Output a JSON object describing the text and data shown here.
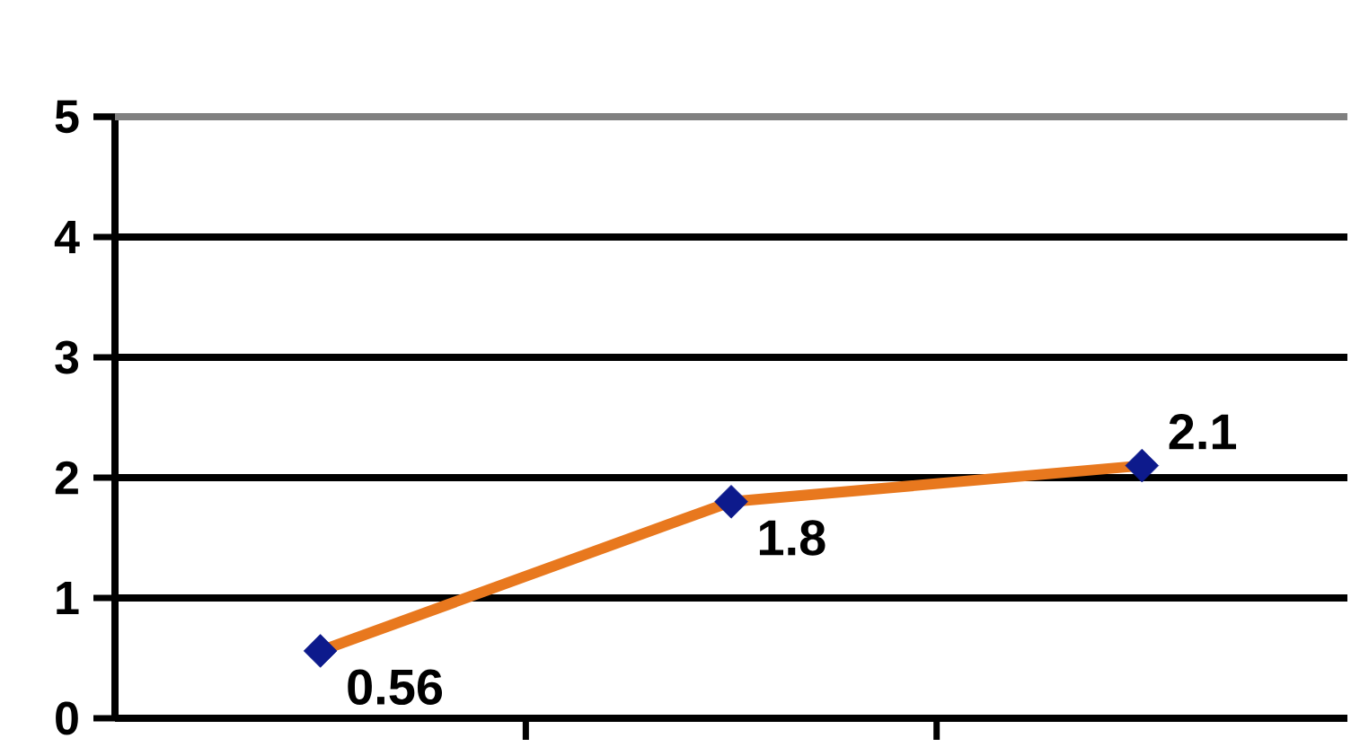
{
  "chart_data": {
    "type": "line",
    "categories": [
      null,
      null,
      null
    ],
    "series": [
      {
        "color": "#e8781e",
        "colors": [
          "#0d1a8c",
          "#0d1a8c",
          "#0d1a8c"
        ],
        "values": [
          0.56,
          1.8,
          2.1
        ]
      }
    ],
    "ylim": [
      0,
      5
    ],
    "yticks": [
      0,
      1,
      2,
      3,
      4,
      5
    ],
    "grid": "y",
    "marker": "diamond",
    "data_labels": true
  }
}
